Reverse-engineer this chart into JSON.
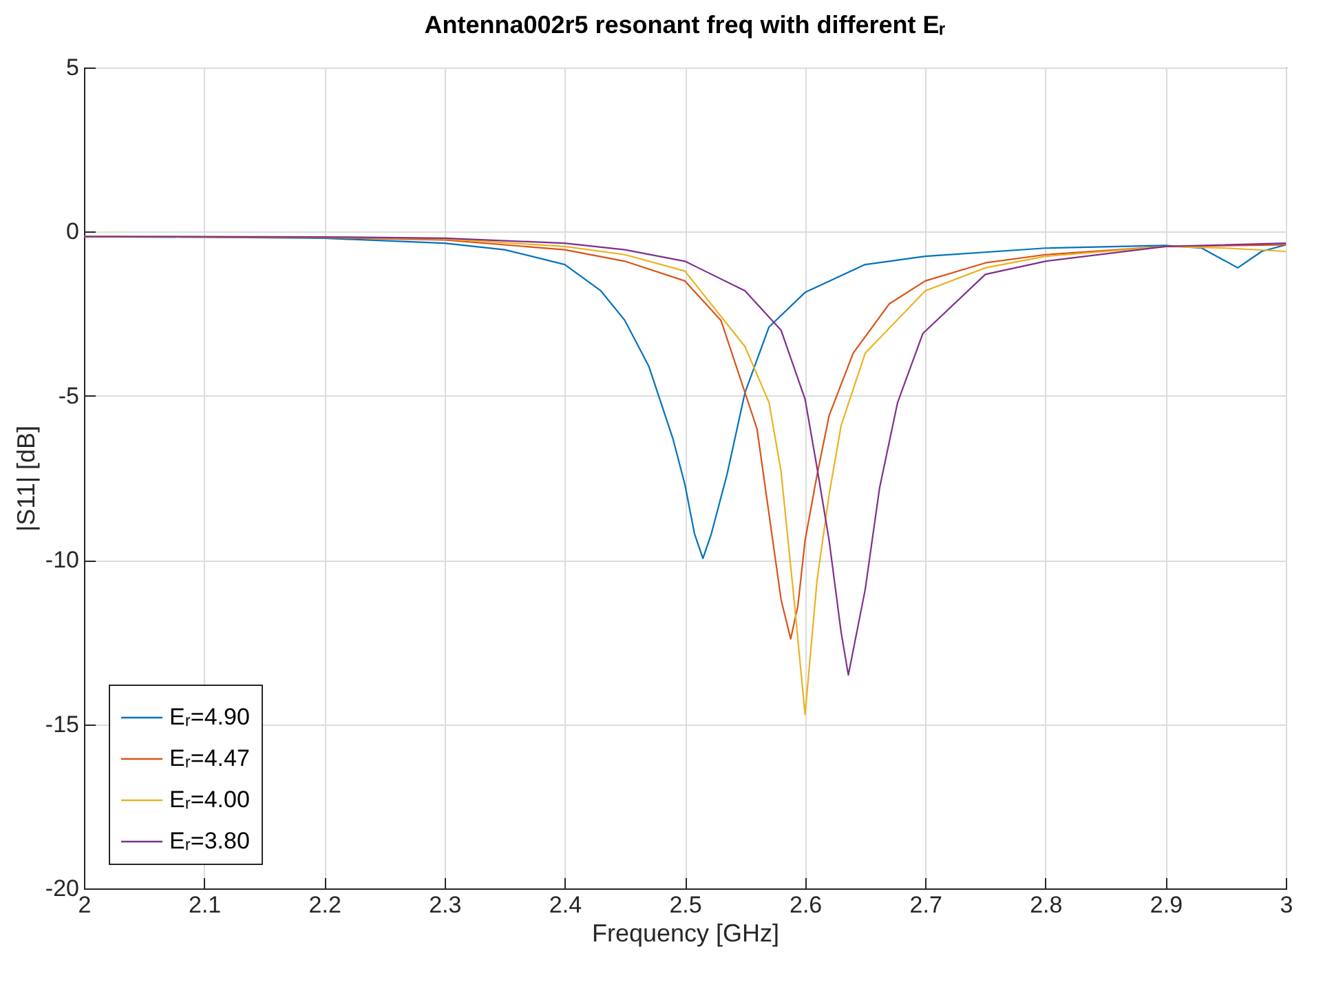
{
  "chart_data": {
    "type": "line",
    "title": "Antenna002r5 resonant freq with different Eᵣ",
    "xlabel": "Frequency [GHz]",
    "ylabel": "|S11| [dB]",
    "xlim": [
      2,
      3
    ],
    "xticks": [
      2,
      2.1,
      2.2,
      2.3,
      2.4,
      2.5,
      2.6,
      2.7,
      2.8,
      2.9,
      3
    ],
    "ylim": [
      -20,
      5
    ],
    "yticks": [
      -20,
      -15,
      -10,
      -5,
      0,
      5
    ],
    "grid": true,
    "legend": "bottom left",
    "line_style": "solid",
    "marker": "none",
    "series": [
      {
        "name": "Eᵣ=4.90",
        "color": "#0072bd",
        "x": [
          2,
          2.1,
          2.2,
          2.3,
          2.35,
          2.4,
          2.43,
          2.45,
          2.47,
          2.49,
          2.5,
          2.508,
          2.515,
          2.522,
          2.535,
          2.55,
          2.57,
          2.6,
          2.65,
          2.7,
          2.8,
          2.9,
          2.93,
          2.96,
          2.98,
          3
        ],
        "values": [
          -0.15,
          -0.17,
          -0.2,
          -0.35,
          -0.55,
          -1.0,
          -1.8,
          -2.7,
          -4.1,
          -6.3,
          -7.7,
          -9.2,
          -9.95,
          -9.2,
          -7.4,
          -4.9,
          -2.9,
          -1.85,
          -1.0,
          -0.75,
          -0.5,
          -0.42,
          -0.5,
          -1.1,
          -0.6,
          -0.4
        ]
      },
      {
        "name": "Eᵣ=4.47",
        "color": "#d95319",
        "x": [
          2,
          2.1,
          2.2,
          2.3,
          2.4,
          2.45,
          2.5,
          2.53,
          2.55,
          2.56,
          2.57,
          2.58,
          2.588,
          2.594,
          2.6,
          2.61,
          2.62,
          2.64,
          2.67,
          2.7,
          2.75,
          2.8,
          2.9,
          3
        ],
        "values": [
          -0.15,
          -0.16,
          -0.18,
          -0.25,
          -0.55,
          -0.9,
          -1.5,
          -2.7,
          -4.9,
          -6.0,
          -8.6,
          -11.2,
          -12.4,
          -11.4,
          -9.4,
          -7.4,
          -5.6,
          -3.7,
          -2.2,
          -1.5,
          -0.95,
          -0.7,
          -0.45,
          -0.4
        ]
      },
      {
        "name": "Eᵣ=4.00",
        "color": "#edb120",
        "x": [
          2,
          2.1,
          2.2,
          2.3,
          2.4,
          2.45,
          2.5,
          2.55,
          2.57,
          2.58,
          2.59,
          2.6,
          2.61,
          2.62,
          2.63,
          2.65,
          2.7,
          2.75,
          2.8,
          2.9,
          2.95,
          3
        ],
        "values": [
          -0.15,
          -0.16,
          -0.17,
          -0.22,
          -0.45,
          -0.7,
          -1.2,
          -3.5,
          -5.2,
          -7.3,
          -10.9,
          -14.7,
          -10.6,
          -8.0,
          -5.9,
          -3.7,
          -1.8,
          -1.1,
          -0.75,
          -0.45,
          -0.5,
          -0.6
        ]
      },
      {
        "name": "Eᵣ=3.80",
        "color": "#7e2f8e",
        "x": [
          2,
          2.1,
          2.2,
          2.3,
          2.4,
          2.45,
          2.5,
          2.55,
          2.58,
          2.6,
          2.61,
          2.62,
          2.63,
          2.636,
          2.65,
          2.662,
          2.677,
          2.698,
          2.75,
          2.8,
          2.9,
          3
        ],
        "values": [
          -0.15,
          -0.15,
          -0.16,
          -0.2,
          -0.35,
          -0.55,
          -0.9,
          -1.8,
          -3.0,
          -5.1,
          -7.2,
          -9.4,
          -12.2,
          -13.5,
          -10.9,
          -7.8,
          -5.2,
          -3.1,
          -1.3,
          -0.9,
          -0.45,
          -0.35
        ]
      }
    ]
  }
}
